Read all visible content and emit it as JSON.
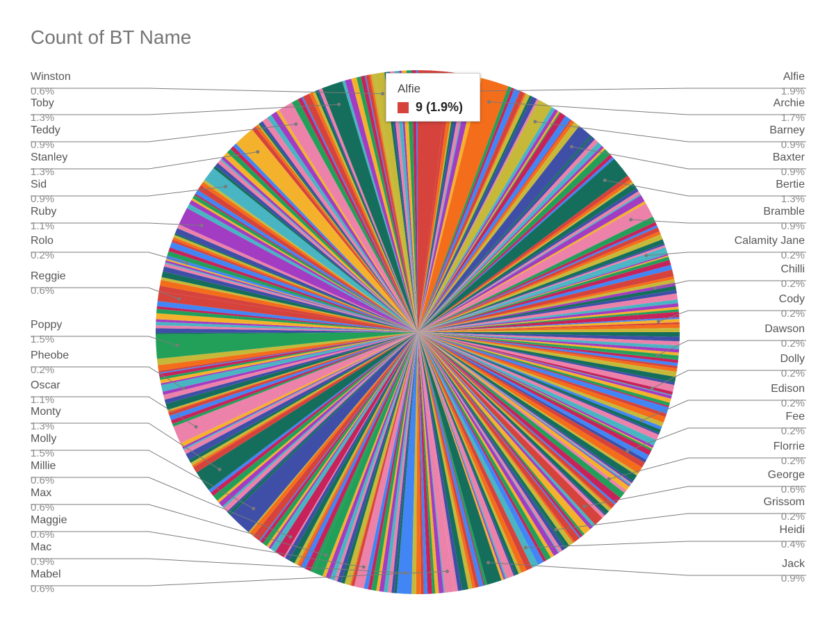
{
  "chart_data": {
    "type": "pie",
    "title": "Count of BT Name",
    "total_slices_note": "",
    "labeled_slices": [
      {
        "name": "Alfie",
        "pct": "1.9%",
        "value": 1.9,
        "color": "#d5433c"
      },
      {
        "name": "Archie",
        "pct": "1.7%",
        "value": 1.7,
        "color": "#f46d1b"
      },
      {
        "name": "Barney",
        "pct": "0.9%",
        "value": 0.9,
        "color": "#c6b93a"
      },
      {
        "name": "Baxter",
        "pct": "0.9%",
        "value": 0.9,
        "color": "#3f4fa8"
      },
      {
        "name": "Bertie",
        "pct": "1.3%",
        "value": 1.3,
        "color": "#156e5c"
      },
      {
        "name": "Bramble",
        "pct": "0.9%",
        "value": 0.9,
        "color": "#ec82aa"
      },
      {
        "name": "Calamity Jane",
        "pct": "0.2%",
        "value": 0.2,
        "color": "#49b5c3"
      },
      {
        "name": "Chilli",
        "pct": "0.2%",
        "value": 0.2,
        "color": "#a23cc2"
      },
      {
        "name": "Cody",
        "pct": "0.2%",
        "value": 0.2,
        "color": "#f4b22c"
      },
      {
        "name": "Dawson",
        "pct": "0.2%",
        "value": 0.2,
        "color": "#22a05a"
      },
      {
        "name": "Dolly",
        "pct": "0.2%",
        "value": 0.2,
        "color": "#c8225a"
      },
      {
        "name": "Edison",
        "pct": "0.2%",
        "value": 0.2,
        "color": "#4285f4"
      },
      {
        "name": "Fee",
        "pct": "0.2%",
        "value": 0.2,
        "color": "#3f4fa8"
      },
      {
        "name": "Florrie",
        "pct": "0.2%",
        "value": 0.2,
        "color": "#ec82aa"
      },
      {
        "name": "George",
        "pct": "0.6%",
        "value": 0.6,
        "color": "#d5433c"
      },
      {
        "name": "Grissom",
        "pct": "0.2%",
        "value": 0.2,
        "color": "#156e5c"
      },
      {
        "name": "Heidi",
        "pct": "0.4%",
        "value": 0.4,
        "color": "#49b5c3"
      },
      {
        "name": "Jack",
        "pct": "0.9%",
        "value": 0.9,
        "color": "#156e5c"
      },
      {
        "name": "Mabel",
        "pct": "0.6%",
        "value": 0.6,
        "color": "#ec82aa"
      },
      {
        "name": "Mac",
        "pct": "0.9%",
        "value": 0.9,
        "color": "#4285f4"
      },
      {
        "name": "Maggie",
        "pct": "0.6%",
        "value": 0.6,
        "color": "#ec82aa"
      },
      {
        "name": "Max",
        "pct": "0.6%",
        "value": 0.6,
        "color": "#22a05a"
      },
      {
        "name": "Millie",
        "pct": "0.6%",
        "value": 0.6,
        "color": "#c8225a"
      },
      {
        "name": "Molly",
        "pct": "1.5%",
        "value": 1.5,
        "color": "#3f4fa8"
      },
      {
        "name": "Monty",
        "pct": "1.3%",
        "value": 1.3,
        "color": "#156e5c"
      },
      {
        "name": "Oscar",
        "pct": "1.1%",
        "value": 1.1,
        "color": "#ec82aa"
      },
      {
        "name": "Pheobe",
        "pct": "0.2%",
        "value": 0.2,
        "color": "#a23cc2"
      },
      {
        "name": "Poppy",
        "pct": "1.5%",
        "value": 1.5,
        "color": "#22a05a"
      },
      {
        "name": "Reggie",
        "pct": "0.6%",
        "value": 0.6,
        "color": "#d5433c"
      },
      {
        "name": "Rolo",
        "pct": "0.2%",
        "value": 0.2,
        "color": "#4285f4"
      },
      {
        "name": "Ruby",
        "pct": "1.1%",
        "value": 1.1,
        "color": "#a23cc2"
      },
      {
        "name": "Sid",
        "pct": "0.9%",
        "value": 0.9,
        "color": "#49b5c3"
      },
      {
        "name": "Stanley",
        "pct": "1.3%",
        "value": 1.3,
        "color": "#f4b22c"
      },
      {
        "name": "Teddy",
        "pct": "0.9%",
        "value": 0.9,
        "color": "#ec82aa"
      },
      {
        "name": "Toby",
        "pct": "1.3%",
        "value": 1.3,
        "color": "#156e5c"
      },
      {
        "name": "Winston",
        "pct": "0.6%",
        "value": 0.6,
        "color": "#c6b93a"
      }
    ],
    "palette": [
      "#d5433c",
      "#f46d1b",
      "#c6b93a",
      "#156e5c",
      "#3f4fa8",
      "#ec82aa",
      "#49b5c3",
      "#a23cc2",
      "#f4b22c",
      "#22a05a",
      "#c8225a",
      "#4285f4"
    ],
    "legend": "labels"
  },
  "tooltip": {
    "name": "Alfie",
    "value_text": "9 (1.9%)",
    "swatch_color": "#d5433c"
  }
}
